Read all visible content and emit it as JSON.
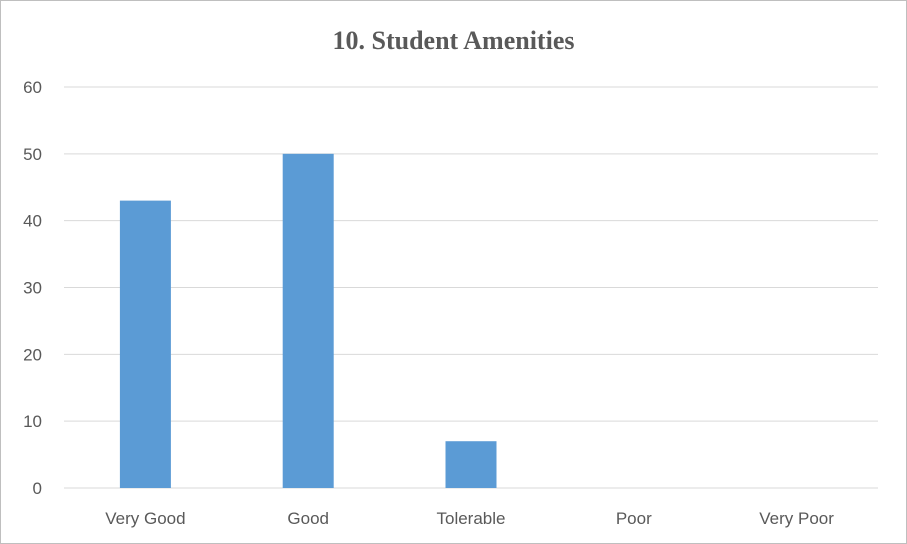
{
  "chart_data": {
    "type": "bar",
    "title": "10. Student Amenities",
    "categories": [
      "Very Good",
      "Good",
      "Tolerable",
      "Poor",
      "Very Poor"
    ],
    "values": [
      43,
      50,
      7,
      0,
      0
    ],
    "ylim": [
      0,
      60
    ],
    "yticks": [
      "0",
      "10",
      "20",
      "30",
      "40",
      "50",
      "60"
    ],
    "xlabel": "",
    "ylabel": "",
    "grid": true,
    "legend": "none",
    "colors": {
      "bar": "#5b9bd5",
      "grid": "#d9d9d9",
      "axis": "#d9d9d9",
      "text": "#595959"
    }
  }
}
